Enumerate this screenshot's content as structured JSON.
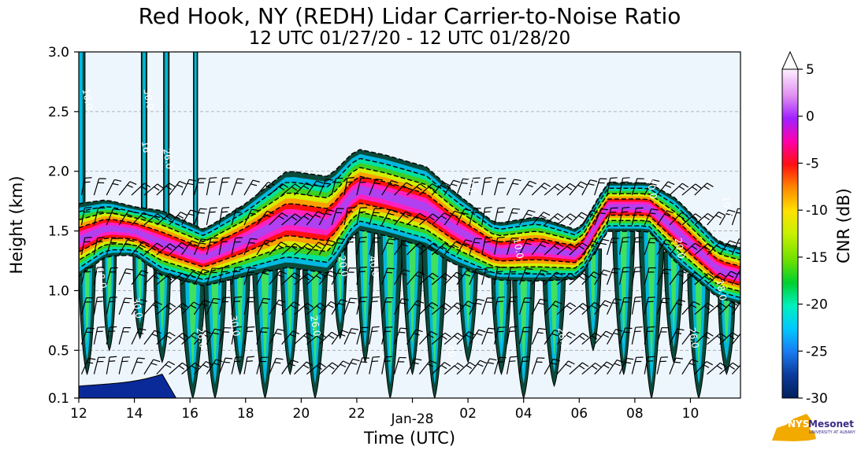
{
  "title": "Red Hook, NY (REDH) Lidar Carrier-to-Noise Ratio",
  "subtitle": "12 UTC 01/27/20 - 12 UTC 01/28/20",
  "logo": {
    "brand": "NYS",
    "name": "Mesonet",
    "sub": "UNIVERSITY AT ALBANY"
  },
  "colors": {
    "background": "#eef6fd",
    "grid": "#9aa0a6",
    "accent": "#3a2b86"
  },
  "chart_data": {
    "type": "heatmap",
    "title": "Red Hook, NY (REDH) Lidar Carrier-to-Noise Ratio",
    "subtitle": "12 UTC 01/27/20 - 12 UTC 01/28/20",
    "xlabel": "Time (UTC)",
    "ylabel": "Height (km)",
    "x_ticks": [
      "12",
      "14",
      "16",
      "18",
      "20",
      "22",
      "Jan-28",
      "02",
      "04",
      "06",
      "08",
      "10"
    ],
    "x_tick_hours": [
      12,
      14,
      16,
      18,
      20,
      22,
      24,
      26,
      28,
      30,
      32,
      34
    ],
    "xlim_hours": [
      12,
      35.8
    ],
    "y_ticks": [
      "0.1",
      "0.5",
      "1.0",
      "1.5",
      "2.0",
      "2.5",
      "3.0"
    ],
    "y_tick_values": [
      0.1,
      0.5,
      1.0,
      1.5,
      2.0,
      2.5,
      3.0
    ],
    "ylim": [
      0.1,
      3.0
    ],
    "grid": "horizontal dashed",
    "colorbar": {
      "label": "CNR (dB)",
      "ticks": [
        "5",
        "0",
        "-5",
        "-10",
        "-15",
        "-20",
        "-25",
        "-30"
      ],
      "tick_values": [
        5,
        0,
        -5,
        -10,
        -15,
        -20,
        -25,
        -30
      ],
      "range": [
        -30,
        5
      ],
      "extend": "max"
    },
    "cloud_layer": [
      {
        "t": 12.0,
        "base": 1.2,
        "top": 1.65
      },
      {
        "t": 13.0,
        "base": 1.35,
        "top": 1.7
      },
      {
        "t": 14.0,
        "base": 1.35,
        "top": 1.65
      },
      {
        "t": 15.0,
        "base": 1.2,
        "top": 1.6
      },
      {
        "t": 16.5,
        "base": 1.1,
        "top": 1.45
      },
      {
        "t": 18.0,
        "base": 1.2,
        "top": 1.65
      },
      {
        "t": 19.5,
        "base": 1.3,
        "top": 1.9
      },
      {
        "t": 21.0,
        "base": 1.25,
        "top": 1.85
      },
      {
        "t": 22.0,
        "base": 1.6,
        "top": 2.1
      },
      {
        "t": 23.0,
        "base": 1.55,
        "top": 2.05
      },
      {
        "t": 24.5,
        "base": 1.45,
        "top": 1.95
      },
      {
        "t": 25.5,
        "base": 1.3,
        "top": 1.75
      },
      {
        "t": 27.0,
        "base": 1.15,
        "top": 1.5
      },
      {
        "t": 28.5,
        "base": 1.15,
        "top": 1.55
      },
      {
        "t": 30.0,
        "base": 1.15,
        "top": 1.45
      },
      {
        "t": 31.0,
        "base": 1.55,
        "top": 1.85
      },
      {
        "t": 32.5,
        "base": 1.55,
        "top": 1.85
      },
      {
        "t": 33.5,
        "base": 1.3,
        "top": 1.7
      },
      {
        "t": 35.0,
        "base": 1.0,
        "top": 1.35
      },
      {
        "t": 35.8,
        "base": 0.95,
        "top": 1.3
      }
    ],
    "contour_labels": [
      {
        "t": 12.2,
        "h": 2.6,
        "text": "10.0"
      },
      {
        "t": 14.4,
        "h": 2.6,
        "text": "30.0"
      },
      {
        "t": 14.3,
        "h": 2.2,
        "text": "16"
      },
      {
        "t": 15.1,
        "h": 2.1,
        "text": "26.0"
      },
      {
        "t": 12.7,
        "h": 1.1,
        "text": "18.0"
      },
      {
        "t": 14.0,
        "h": 0.85,
        "text": "30.0"
      },
      {
        "t": 16.3,
        "h": 0.6,
        "text": "26.0"
      },
      {
        "t": 17.5,
        "h": 0.7,
        "text": "30.0"
      },
      {
        "t": 20.4,
        "h": 0.7,
        "text": "26.0"
      },
      {
        "t": 21.4,
        "h": 1.2,
        "text": "20.0"
      },
      {
        "t": 22.5,
        "h": 1.2,
        "text": "40.0"
      },
      {
        "t": 25.3,
        "h": 0.45,
        "text": "40.0"
      },
      {
        "t": 26.0,
        "h": 1.9,
        "text": "20.0"
      },
      {
        "t": 27.7,
        "h": 1.35,
        "text": "10.0"
      },
      {
        "t": 29.3,
        "h": 0.6,
        "text": "28.0"
      },
      {
        "t": 32.5,
        "h": 1.85,
        "text": "40.0"
      },
      {
        "t": 33.5,
        "h": 1.35,
        "text": "20.0"
      },
      {
        "t": 34.0,
        "h": 0.6,
        "text": "26.0"
      },
      {
        "t": 35.0,
        "h": 1.0,
        "text": "18.0"
      },
      {
        "t": 35.2,
        "h": 1.7,
        "text": "10.0"
      }
    ]
  }
}
